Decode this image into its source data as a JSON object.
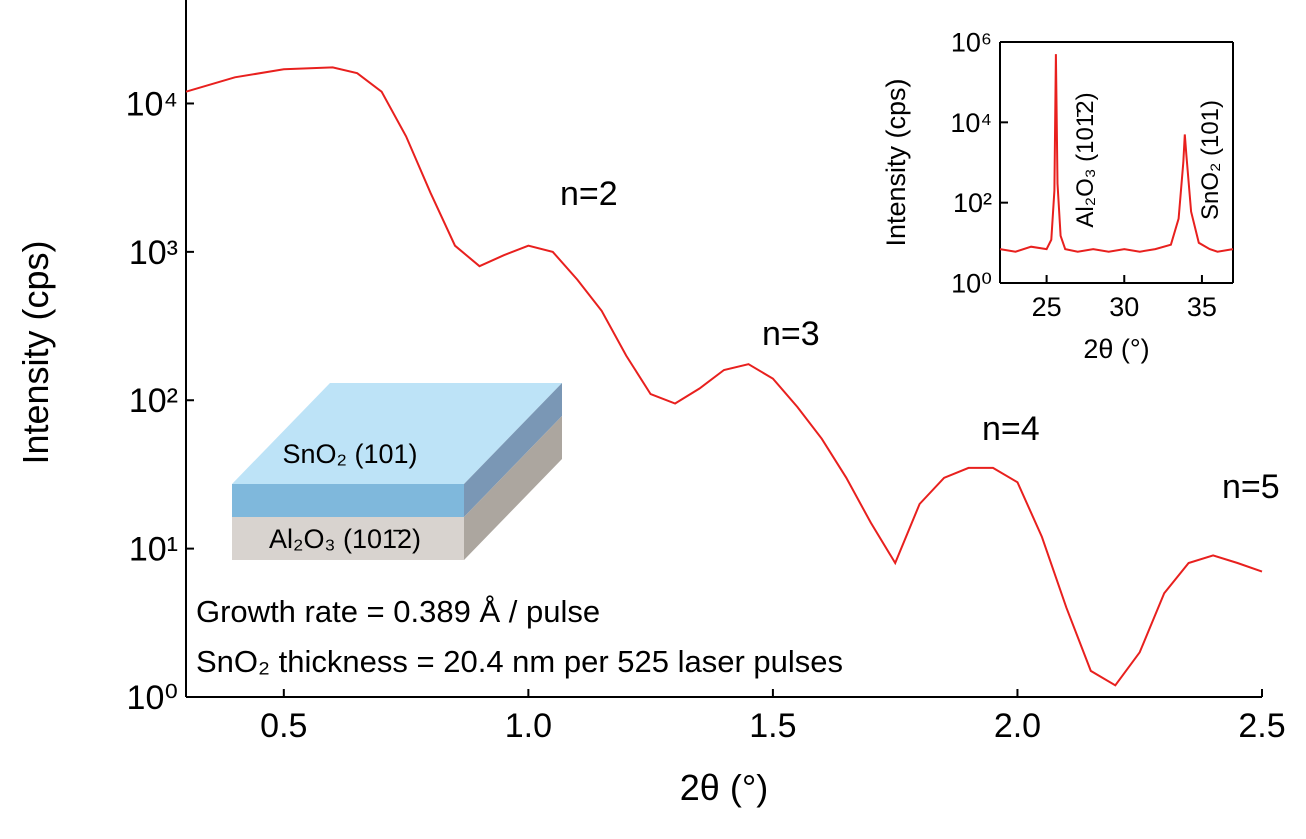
{
  "chart_data": [
    {
      "type": "line",
      "yscale": "log",
      "xlabel": "2θ (°)",
      "ylabel": "Intensity (cps)",
      "xlim": [
        0.3,
        2.5
      ],
      "ylim": [
        1,
        44000
      ],
      "xticks": [
        0.5,
        {
          "value": 1.0,
          "label": "1.0"
        },
        1.5,
        {
          "value": 2.0,
          "label": "2.0"
        },
        2.5
      ],
      "yticks": [
        {
          "value": 1,
          "label": "10⁰"
        },
        {
          "value": 10,
          "label": "10¹"
        },
        {
          "value": 100,
          "label": "10²"
        },
        {
          "value": 1000,
          "label": "10³"
        },
        {
          "value": 10000,
          "label": "10⁴"
        }
      ],
      "x": [
        0.3,
        0.4,
        0.5,
        0.6,
        0.65,
        0.7,
        0.75,
        0.8,
        0.85,
        0.9,
        0.95,
        1.0,
        1.05,
        1.1,
        1.15,
        1.2,
        1.25,
        1.3,
        1.35,
        1.4,
        1.45,
        1.5,
        1.55,
        1.6,
        1.65,
        1.7,
        1.75,
        1.8,
        1.85,
        1.9,
        1.95,
        2.0,
        2.05,
        2.1,
        2.15,
        2.2,
        2.25,
        2.3,
        2.35,
        2.4,
        2.45,
        2.5
      ],
      "series": [
        {
          "color": "#e8201e",
          "values": [
            12000,
            15000,
            17000,
            17500,
            16000,
            12000,
            6000,
            2500,
            1100,
            800,
            950,
            1100,
            1000,
            650,
            400,
            200,
            110,
            95,
            120,
            160,
            175,
            140,
            90,
            55,
            30,
            15,
            8,
            20,
            30,
            35,
            35,
            28,
            12,
            4,
            1.5,
            1.2,
            2,
            5,
            8,
            9,
            8,
            7
          ]
        }
      ],
      "annotations": [
        "n=2",
        "n=3",
        "n=4",
        "n=5",
        "Growth rate =  0.389 Å / pulse",
        "SnO₂ thickness  = 20.4 nm per 525 laser pulses"
      ]
    },
    {
      "type": "line",
      "yscale": "log",
      "xlabel": "2θ (°)",
      "ylabel": "Intensity (cps)",
      "xlim": [
        22,
        37
      ],
      "ylim": [
        1,
        1000000
      ],
      "xticks": [
        25,
        30,
        35
      ],
      "yticks": [
        {
          "value": 1,
          "label": "10⁰"
        },
        {
          "value": 100,
          "label": "10²"
        },
        {
          "value": 10000,
          "label": "10⁴"
        },
        {
          "value": 1000000,
          "label": "10⁶"
        }
      ],
      "x": [
        22,
        23,
        24,
        25,
        25.3,
        25.5,
        25.6,
        25.7,
        25.9,
        26.2,
        27,
        28,
        29,
        30,
        31,
        32,
        33,
        33.5,
        33.8,
        33.9,
        34,
        34.3,
        34.8,
        35.5,
        36,
        37
      ],
      "series": [
        {
          "color": "#e8201e",
          "values": [
            7,
            6,
            8,
            7,
            12,
            200,
            500000,
            300,
            15,
            7,
            6,
            7,
            6,
            7,
            6,
            7,
            9,
            40,
            1000,
            5000,
            1500,
            60,
            10,
            7,
            6,
            7
          ]
        }
      ],
      "annotations": [
        "Al₂O₃ (101̄2)",
        "SnO₂ (101)"
      ]
    }
  ],
  "diagram": {
    "top_layer": "SnO₂ (101)",
    "substrate": "Al₂O₃ (101̄2)"
  }
}
